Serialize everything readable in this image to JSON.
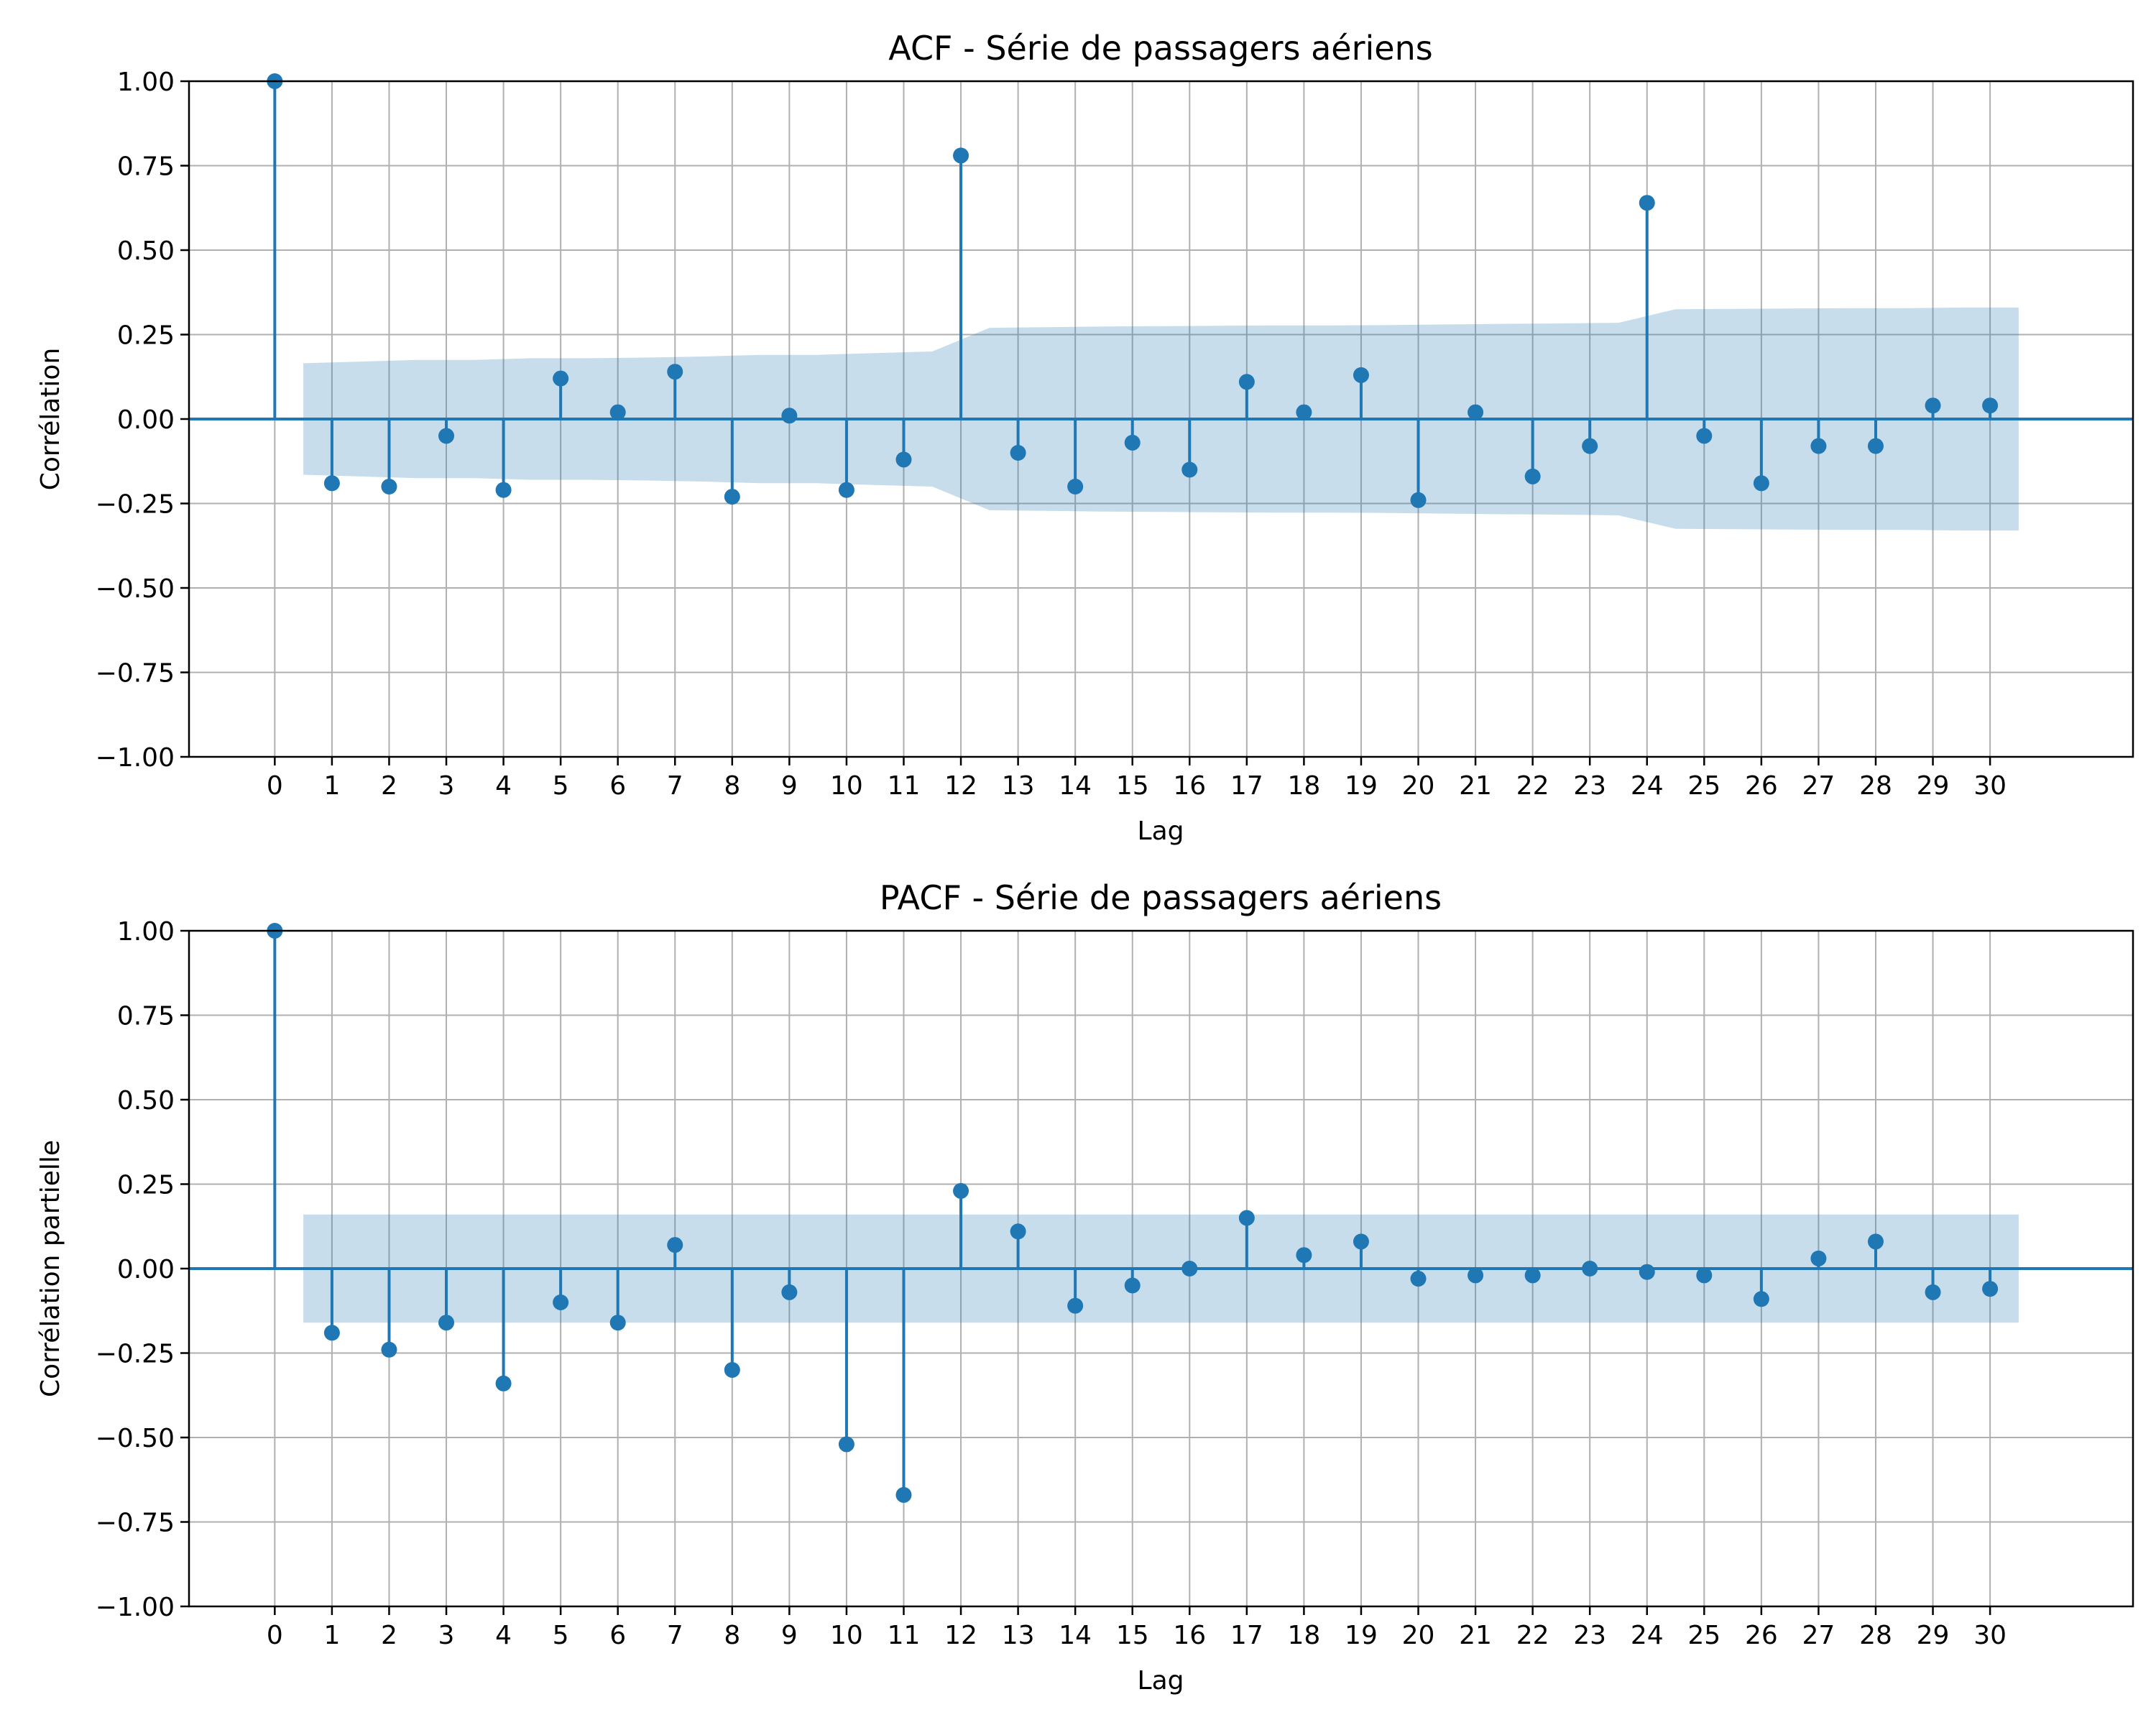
{
  "colors": {
    "stem": "#1f77b4",
    "band": "#1f77b4",
    "grid": "#b0b0b0"
  },
  "chart_data": [
    {
      "type": "stem",
      "title": "ACF - Série de passagers aériens",
      "xlabel": "Lag",
      "ylabel": "Corrélation",
      "ylim": [
        -1.0,
        1.0
      ],
      "xlim": [
        -1.5,
        32.5
      ],
      "grid": true,
      "x": [
        0,
        1,
        2,
        3,
        4,
        5,
        6,
        7,
        8,
        9,
        10,
        11,
        12,
        13,
        14,
        15,
        16,
        17,
        18,
        19,
        20,
        21,
        22,
        23,
        24,
        25,
        26,
        27,
        28,
        29,
        30
      ],
      "values": [
        1.0,
        -0.19,
        -0.2,
        -0.05,
        -0.21,
        0.12,
        0.02,
        0.14,
        -0.23,
        0.01,
        -0.21,
        -0.12,
        0.78,
        -0.1,
        -0.2,
        -0.07,
        -0.15,
        0.11,
        0.02,
        0.13,
        -0.24,
        0.02,
        -0.17,
        -0.08,
        0.64,
        -0.05,
        -0.19,
        -0.08,
        -0.08,
        0.04,
        0.04
      ],
      "confidence_upper": [
        0.16,
        0.165,
        0.17,
        0.175,
        0.175,
        0.18,
        0.18,
        0.182,
        0.185,
        0.19,
        0.19,
        0.195,
        0.2,
        0.27,
        0.272,
        0.274,
        0.275,
        0.276,
        0.277,
        0.277,
        0.278,
        0.28,
        0.282,
        0.283,
        0.285,
        0.325,
        0.326,
        0.327,
        0.328,
        0.328,
        0.33
      ],
      "x_ticks": [
        "0",
        "1",
        "2",
        "3",
        "4",
        "5",
        "6",
        "7",
        "8",
        "9",
        "10",
        "11",
        "12",
        "13",
        "14",
        "15",
        "16",
        "17",
        "18",
        "19",
        "20",
        "21",
        "22",
        "23",
        "24",
        "25",
        "26",
        "27",
        "28",
        "29",
        "30"
      ],
      "y_ticks": [
        "1.00",
        "0.75",
        "0.50",
        "0.25",
        "0.00",
        "−0.25",
        "−0.50",
        "−0.75",
        "−1.00"
      ]
    },
    {
      "type": "stem",
      "title": "PACF - Série de passagers aériens",
      "xlabel": "Lag",
      "ylabel": "Corrélation partielle",
      "ylim": [
        -1.0,
        1.0
      ],
      "xlim": [
        -1.5,
        32.5
      ],
      "grid": true,
      "x": [
        0,
        1,
        2,
        3,
        4,
        5,
        6,
        7,
        8,
        9,
        10,
        11,
        12,
        13,
        14,
        15,
        16,
        17,
        18,
        19,
        20,
        21,
        22,
        23,
        24,
        25,
        26,
        27,
        28,
        29,
        30
      ],
      "values": [
        1.0,
        -0.19,
        -0.24,
        -0.16,
        -0.34,
        -0.1,
        -0.16,
        0.07,
        -0.3,
        -0.07,
        -0.52,
        -0.67,
        0.23,
        0.11,
        -0.11,
        -0.05,
        0.0,
        0.15,
        0.04,
        0.08,
        -0.03,
        -0.02,
        -0.02,
        0.0,
        -0.01,
        -0.02,
        -0.09,
        0.03,
        0.08,
        -0.07,
        -0.06
      ],
      "confidence_upper": [
        0.16,
        0.16,
        0.16,
        0.16,
        0.16,
        0.16,
        0.16,
        0.16,
        0.16,
        0.16,
        0.16,
        0.16,
        0.16,
        0.16,
        0.16,
        0.16,
        0.16,
        0.16,
        0.16,
        0.16,
        0.16,
        0.16,
        0.16,
        0.16,
        0.16,
        0.16,
        0.16,
        0.16,
        0.16,
        0.16,
        0.16
      ],
      "x_ticks": [
        "0",
        "1",
        "2",
        "3",
        "4",
        "5",
        "6",
        "7",
        "8",
        "9",
        "10",
        "11",
        "12",
        "13",
        "14",
        "15",
        "16",
        "17",
        "18",
        "19",
        "20",
        "21",
        "22",
        "23",
        "24",
        "25",
        "26",
        "27",
        "28",
        "29",
        "30"
      ],
      "y_ticks": [
        "1.00",
        "0.75",
        "0.50",
        "0.25",
        "0.00",
        "−0.25",
        "−0.50",
        "−0.75",
        "−1.00"
      ]
    }
  ]
}
